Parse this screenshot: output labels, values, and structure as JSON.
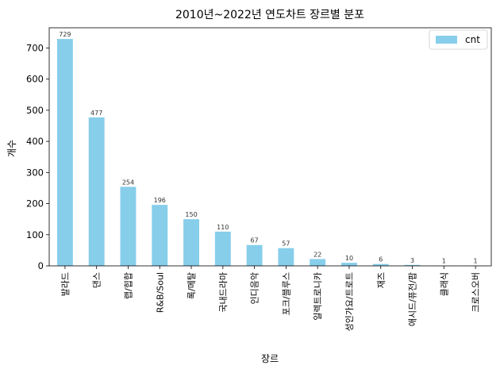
{
  "chart_data": {
    "type": "bar",
    "title": "2010년~2022년 연도차트 장르별 분포",
    "xlabel": "장르",
    "ylabel": "개수",
    "categories": [
      "발라드",
      "댄스",
      "랩/힙합",
      "R&B/Soul",
      "록/메탈",
      "국내드라마",
      "인디음악",
      "포크/블루스",
      "일렉트로니카",
      "성인가요/트로트",
      "재즈",
      "애시드/퓨전/팝",
      "클래식",
      "크로스오버"
    ],
    "series": [
      {
        "name": "cnt",
        "values": [
          729,
          477,
          254,
          196,
          150,
          110,
          67,
          57,
          22,
          10,
          6,
          3,
          1,
          1
        ]
      }
    ],
    "ylim": [
      0,
      765
    ],
    "yticks": [
      0,
      100,
      200,
      300,
      400,
      500,
      600,
      700
    ],
    "grid": false,
    "legend_position": "top-right",
    "bar_color": "#87ceeb"
  }
}
